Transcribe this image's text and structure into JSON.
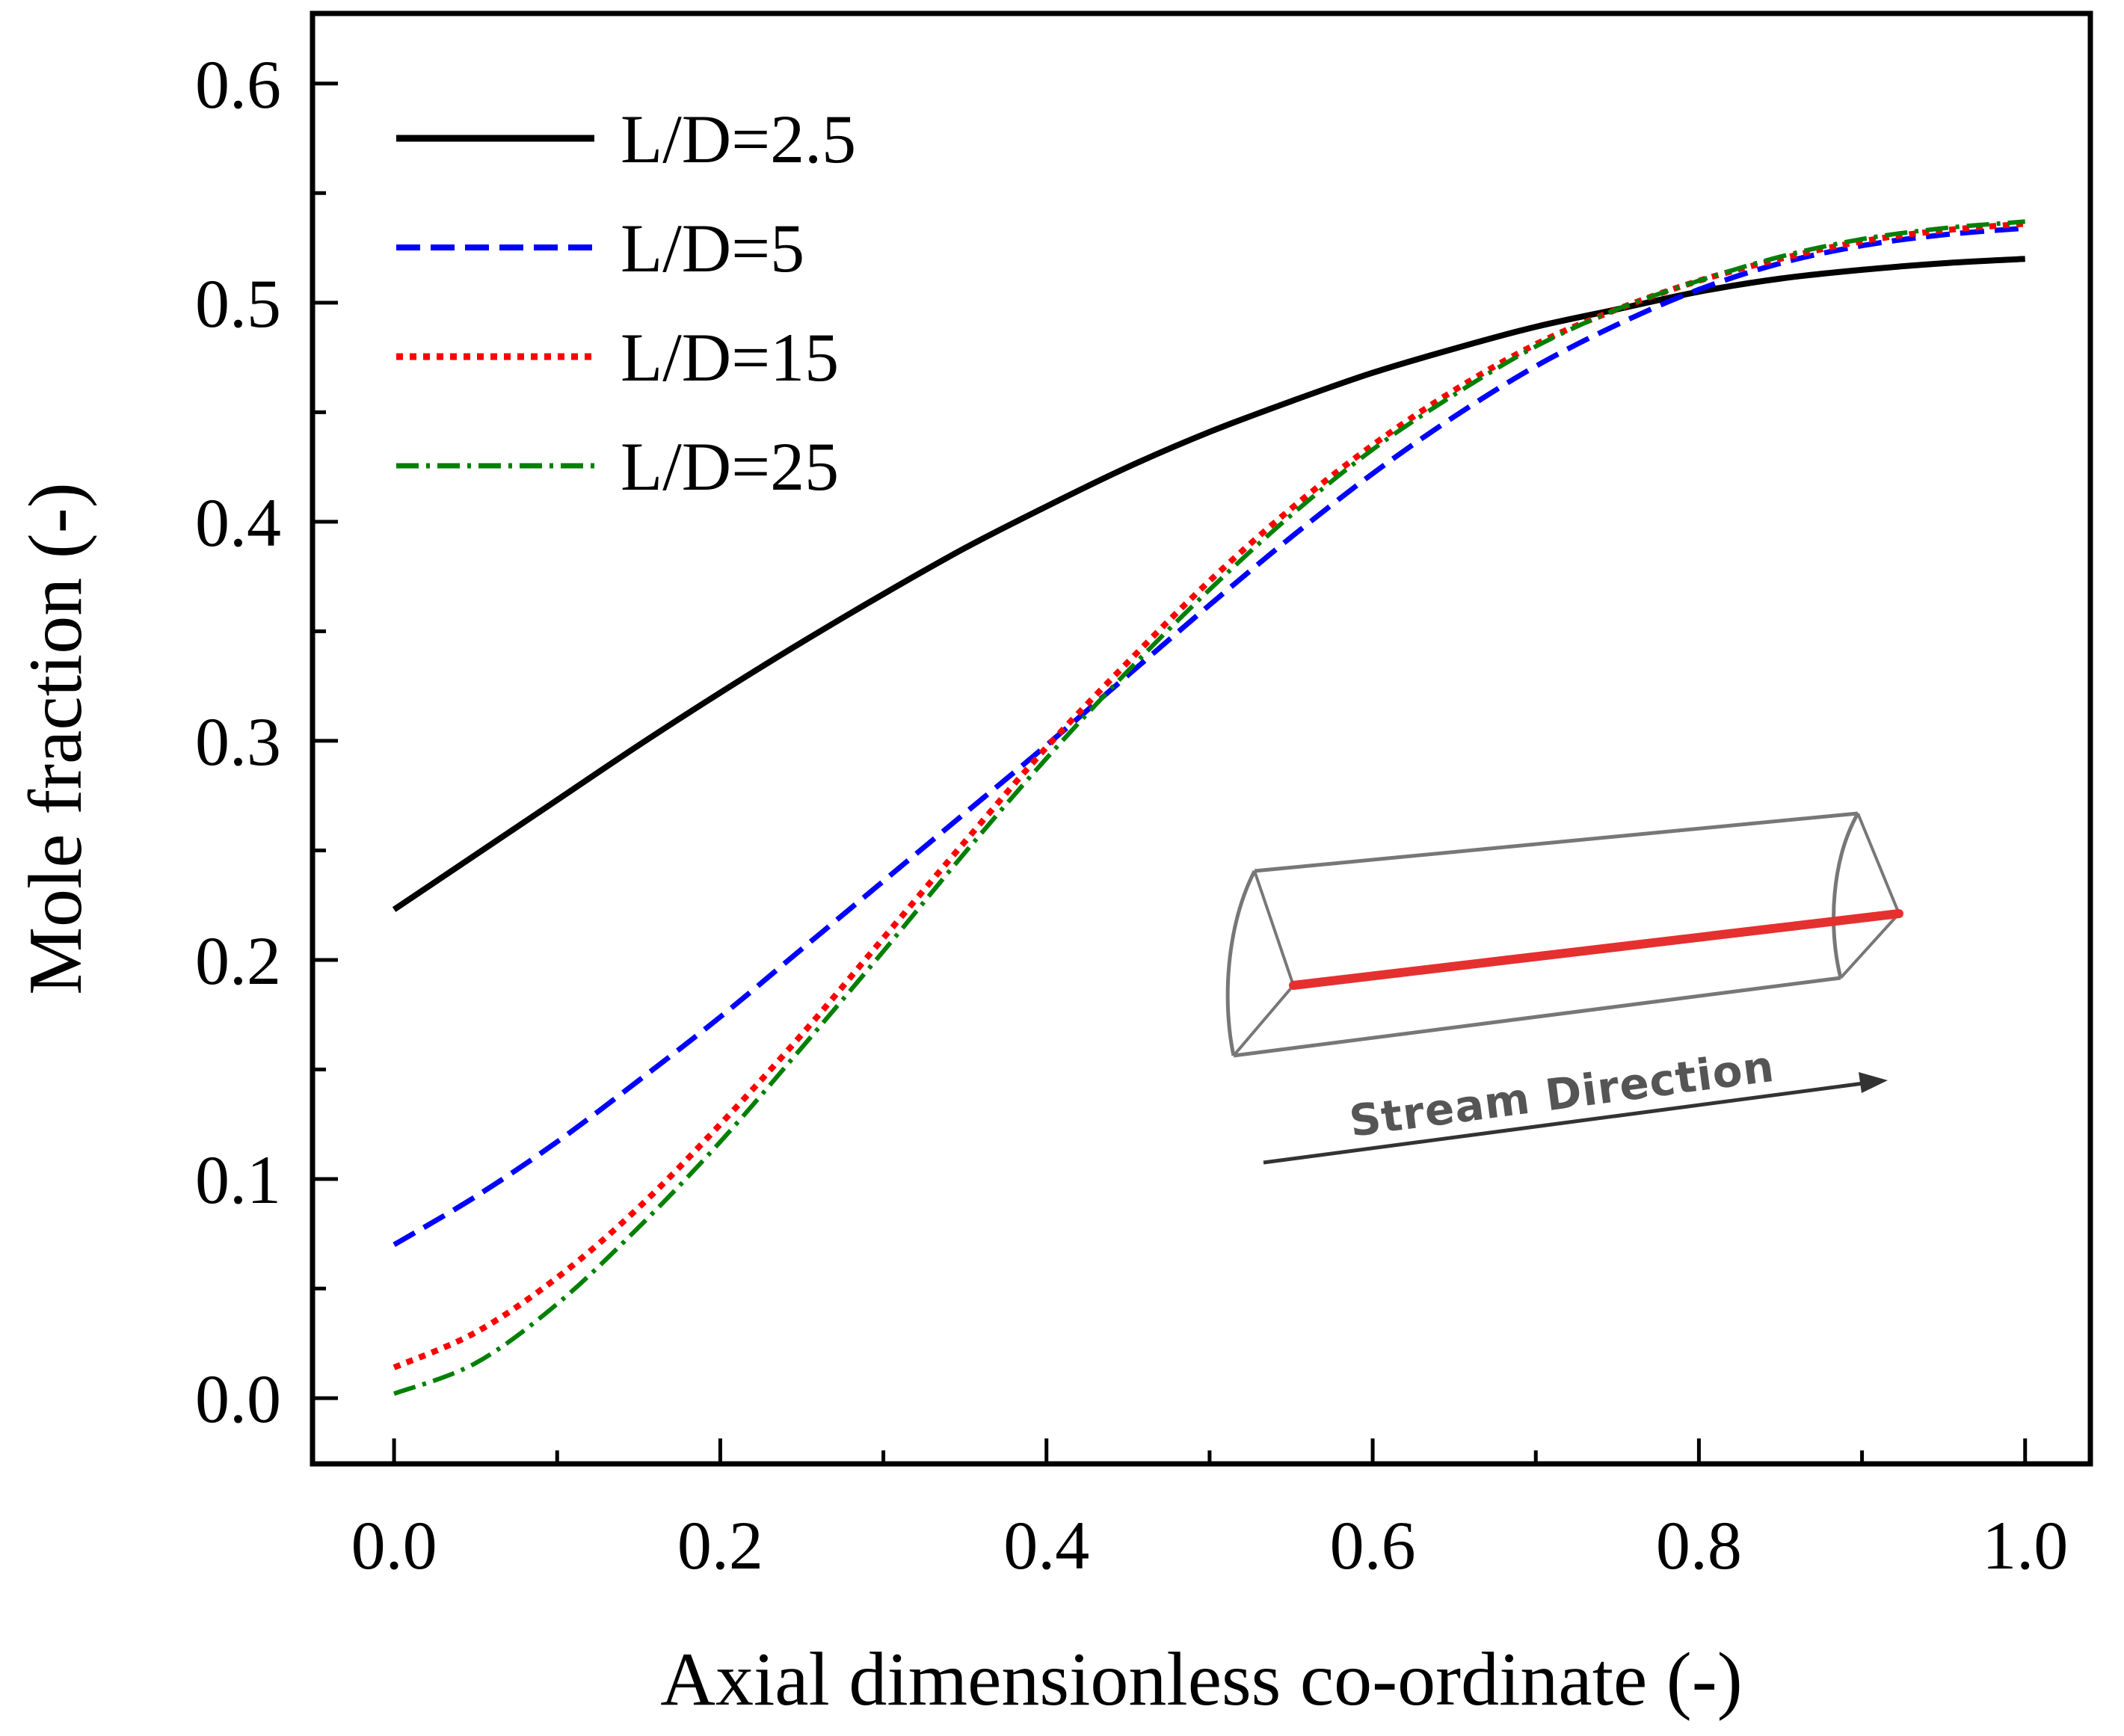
{
  "chart_data": {
    "type": "line",
    "title": "",
    "xlabel": "Axial dimensionless co-ordinate (-)",
    "ylabel": "Mole fraction (-)",
    "xlim": [
      -0.05,
      1.04
    ],
    "ylim": [
      -0.03,
      0.632
    ],
    "xticks": [
      0.0,
      0.2,
      0.4,
      0.6,
      0.8,
      1.0
    ],
    "xtick_labels": [
      "0.0",
      "0.2",
      "0.4",
      "0.6",
      "0.8",
      "1.0"
    ],
    "yticks": [
      0.0,
      0.1,
      0.2,
      0.3,
      0.4,
      0.5,
      0.6
    ],
    "ytick_labels": [
      "0.0",
      "0.1",
      "0.2",
      "0.3",
      "0.4",
      "0.5",
      "0.6"
    ],
    "grid": false,
    "legend_position": "top-left",
    "series": [
      {
        "name": "L/D=2.5",
        "color": "#000000",
        "style": "solid",
        "x": [
          0.0,
          0.05,
          0.1,
          0.15,
          0.2,
          0.25,
          0.3,
          0.35,
          0.4,
          0.45,
          0.5,
          0.55,
          0.6,
          0.65,
          0.7,
          0.75,
          0.8,
          0.85,
          0.9,
          0.95,
          1.0
        ],
        "y": [
          0.223,
          0.248,
          0.273,
          0.298,
          0.322,
          0.345,
          0.367,
          0.388,
          0.407,
          0.425,
          0.441,
          0.455,
          0.468,
          0.479,
          0.489,
          0.497,
          0.505,
          0.511,
          0.515,
          0.518,
          0.52
        ]
      },
      {
        "name": "L/D=5",
        "color": "#0000ff",
        "style": "dashed",
        "x": [
          0.0,
          0.05,
          0.1,
          0.15,
          0.2,
          0.25,
          0.3,
          0.35,
          0.4,
          0.45,
          0.5,
          0.55,
          0.6,
          0.65,
          0.7,
          0.75,
          0.8,
          0.85,
          0.9,
          0.95,
          1.0
        ],
        "y": [
          0.07,
          0.092,
          0.117,
          0.145,
          0.174,
          0.205,
          0.236,
          0.267,
          0.298,
          0.33,
          0.362,
          0.393,
          0.422,
          0.448,
          0.471,
          0.49,
          0.506,
          0.518,
          0.526,
          0.531,
          0.534
        ]
      },
      {
        "name": "L/D=15",
        "color": "#ff0000",
        "style": "dotted",
        "x": [
          0.0,
          0.05,
          0.1,
          0.15,
          0.2,
          0.25,
          0.3,
          0.35,
          0.4,
          0.45,
          0.5,
          0.55,
          0.6,
          0.65,
          0.7,
          0.75,
          0.8,
          0.85,
          0.9,
          0.95,
          1.0
        ],
        "y": [
          0.014,
          0.03,
          0.055,
          0.087,
          0.125,
          0.166,
          0.21,
          0.254,
          0.297,
          0.336,
          0.373,
          0.406,
          0.435,
          0.46,
          0.481,
          0.497,
          0.51,
          0.52,
          0.528,
          0.533,
          0.536
        ]
      },
      {
        "name": "L/D=25",
        "color": "#008000",
        "style": "dashdot",
        "x": [
          0.0,
          0.05,
          0.1,
          0.15,
          0.2,
          0.25,
          0.3,
          0.35,
          0.4,
          0.45,
          0.5,
          0.55,
          0.6,
          0.65,
          0.7,
          0.75,
          0.8,
          0.85,
          0.9,
          0.95,
          1.0
        ],
        "y": [
          0.002,
          0.016,
          0.043,
          0.078,
          0.117,
          0.16,
          0.204,
          0.249,
          0.292,
          0.332,
          0.369,
          0.403,
          0.433,
          0.458,
          0.48,
          0.497,
          0.51,
          0.521,
          0.529,
          0.534,
          0.537
        ]
      }
    ],
    "inset": {
      "label": "Stream Direction",
      "pipe_color": "#777777",
      "centerline_color": "#e53030"
    }
  }
}
